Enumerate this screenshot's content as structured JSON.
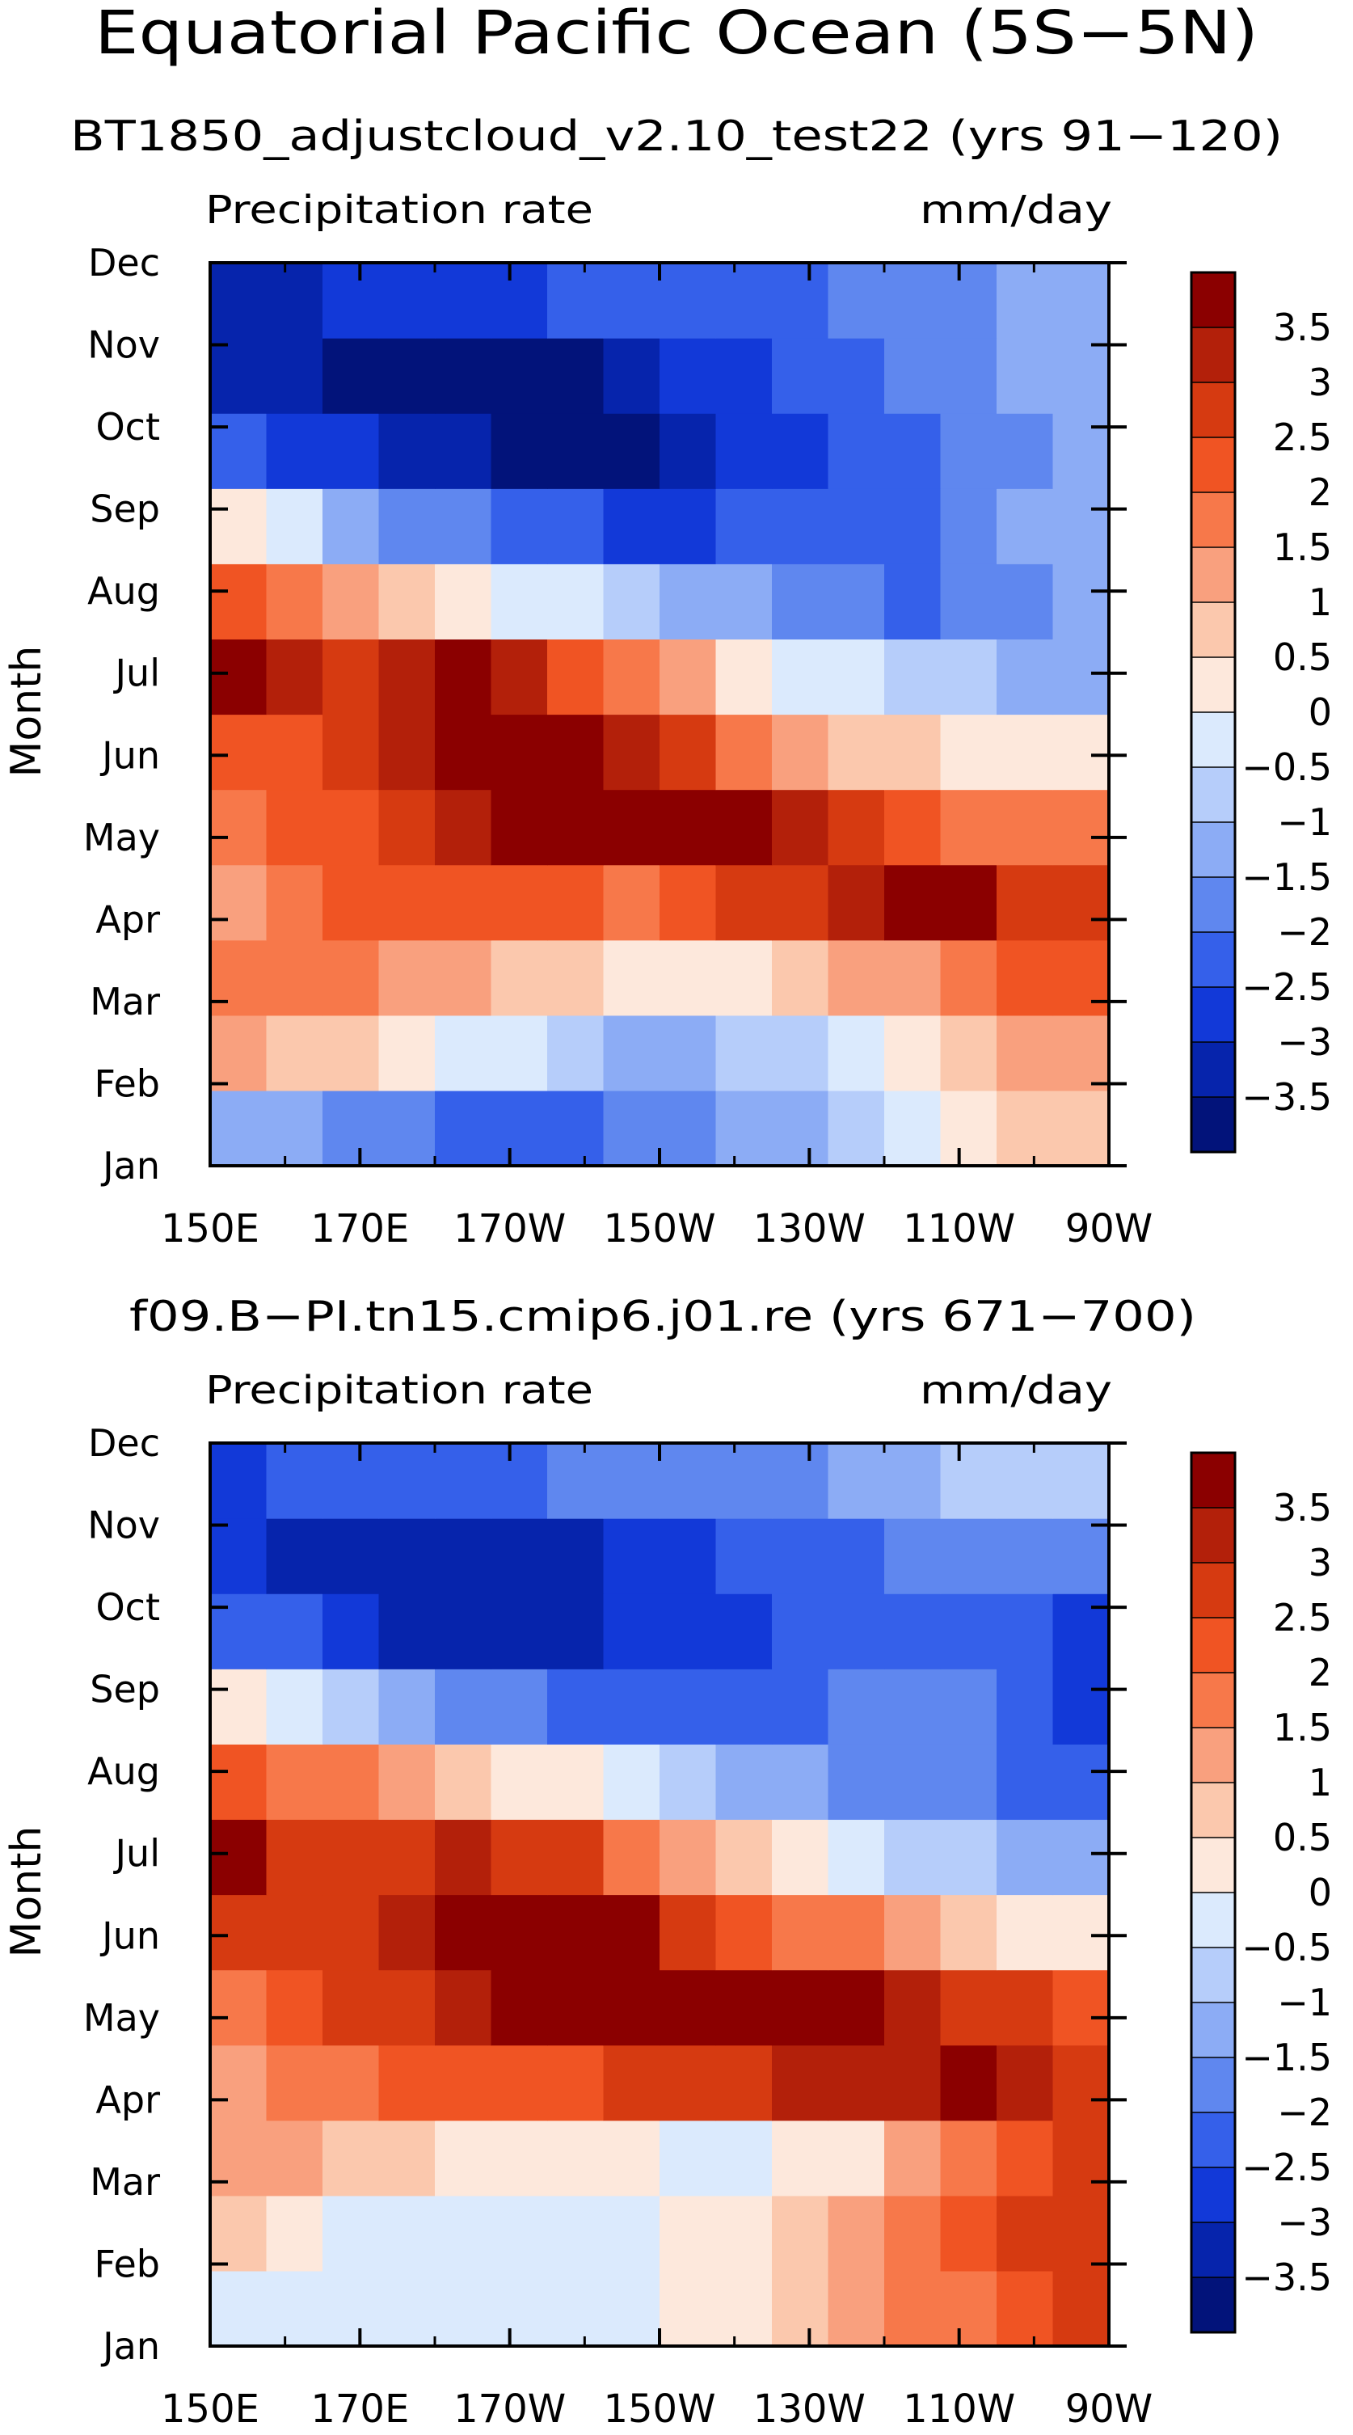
{
  "page": {
    "title": "Equatorial Pacific Ocean (5S−5N)"
  },
  "chart_data": [
    {
      "type": "heatmap",
      "subtitle": "BT1850_adjustcloud_v2.10_test22 (yrs 91−120)",
      "left_label": "Precipitation rate",
      "right_label": "mm/day",
      "ylabel": "Month",
      "xlabel": "",
      "x_ticks": [
        "150E",
        "170E",
        "170W",
        "150W",
        "130W",
        "110W",
        "90W"
      ],
      "y_ticks": [
        "Jan",
        "Feb",
        "Mar",
        "Apr",
        "May",
        "Jun",
        "Jul",
        "Aug",
        "Sep",
        "Oct",
        "Nov",
        "Dec"
      ],
      "colorbar_ticks": [
        "3.5",
        "3",
        "2.5",
        "2",
        "1.5",
        "1",
        "0.5",
        "0",
        "−0.5",
        "−1",
        "−1.5",
        "−2",
        "−2.5",
        "−3",
        "−3.5"
      ],
      "colorbar_colors": [
        "#8b0000",
        "#b3200a",
        "#d63a11",
        "#f05423",
        "#f7784a",
        "#f9a07e",
        "#fbc8ad",
        "#fde8dc",
        "#dbeafd",
        "#b6cdfa",
        "#8cacf5",
        "#5f87ef",
        "#3560ea",
        "#1239d8",
        "#0624ac",
        "#02137a"
      ],
      "grid": [
        [
          -1.2,
          -1.4,
          -1.6,
          -1.8,
          -2.0,
          -2.2,
          -2.1,
          -1.9,
          -1.6,
          -1.3,
          -1.0,
          -0.6,
          -0.3,
          0.2,
          0.6,
          0.9
        ],
        [
          1.2,
          0.9,
          0.6,
          0.3,
          0.0,
          -0.4,
          -0.8,
          -1.0,
          -1.0,
          -0.8,
          -0.5,
          -0.1,
          0.3,
          0.7,
          1.1,
          1.4
        ],
        [
          1.8,
          1.9,
          2.0,
          1.5,
          1.2,
          0.9,
          0.6,
          0.4,
          0.3,
          0.5,
          0.8,
          1.1,
          1.5,
          1.9,
          2.2,
          2.4
        ],
        [
          1.4,
          1.9,
          2.2,
          2.3,
          2.3,
          2.2,
          2.1,
          2.0,
          2.3,
          2.6,
          2.9,
          3.2,
          3.5,
          3.7,
          2.9,
          2.6
        ],
        [
          1.6,
          2.1,
          2.5,
          3.0,
          3.4,
          3.6,
          3.8,
          3.9,
          3.9,
          3.7,
          3.3,
          2.8,
          2.3,
          1.9,
          1.8,
          1.6
        ],
        [
          2.5,
          2.4,
          2.6,
          3.2,
          3.8,
          3.9,
          3.7,
          3.2,
          2.6,
          2.0,
          1.5,
          1.0,
          0.6,
          0.2,
          0.1,
          0.3
        ],
        [
          3.6,
          3.1,
          2.9,
          3.4,
          3.6,
          3.1,
          2.5,
          1.8,
          1.1,
          0.5,
          0.0,
          -0.4,
          -0.7,
          -0.9,
          -1.0,
          -1.1
        ],
        [
          2.4,
          2.0,
          1.5,
          1.0,
          0.5,
          0.0,
          -0.4,
          -0.8,
          -1.1,
          -1.4,
          -1.7,
          -1.9,
          -2.0,
          -1.8,
          -1.6,
          -1.4
        ],
        [
          0.3,
          -0.4,
          -1.0,
          -1.5,
          -1.9,
          -2.2,
          -2.4,
          -2.5,
          -2.5,
          -2.4,
          -2.3,
          -2.2,
          -2.0,
          -1.7,
          -1.4,
          -1.2
        ],
        [
          -2.0,
          -2.5,
          -2.9,
          -3.2,
          -3.4,
          -3.6,
          -3.6,
          -3.5,
          -3.2,
          -2.9,
          -2.6,
          -2.3,
          -2.0,
          -1.7,
          -1.5,
          -1.3
        ],
        [
          -3.0,
          -3.3,
          -3.6,
          -3.8,
          -3.8,
          -3.7,
          -3.5,
          -3.2,
          -2.9,
          -2.6,
          -2.3,
          -2.0,
          -1.8,
          -1.6,
          -1.4,
          -1.2
        ],
        [
          -3.2,
          -3.1,
          -2.9,
          -2.7,
          -2.6,
          -2.5,
          -2.4,
          -2.3,
          -2.2,
          -2.1,
          -2.0,
          -1.9,
          -1.7,
          -1.5,
          -1.3,
          -1.1
        ]
      ]
    },
    {
      "type": "heatmap",
      "subtitle": "f09.B−PI.tn15.cmip6.j01.re (yrs 671−700)",
      "left_label": "Precipitation rate",
      "right_label": "mm/day",
      "ylabel": "Month",
      "xlabel": "",
      "x_ticks": [
        "150E",
        "170E",
        "170W",
        "150W",
        "130W",
        "110W",
        "90W"
      ],
      "y_ticks": [
        "Jan",
        "Feb",
        "Mar",
        "Apr",
        "May",
        "Jun",
        "Jul",
        "Aug",
        "Sep",
        "Oct",
        "Nov",
        "Dec"
      ],
      "colorbar_ticks": [
        "3.5",
        "3",
        "2.5",
        "2",
        "1.5",
        "1",
        "0.5",
        "0",
        "−0.5",
        "−1",
        "−1.5",
        "−2",
        "−2.5",
        "−3",
        "−3.5"
      ],
      "colorbar_colors": [
        "#8b0000",
        "#b3200a",
        "#d63a11",
        "#f05423",
        "#f7784a",
        "#f9a07e",
        "#fbc8ad",
        "#fde8dc",
        "#dbeafd",
        "#b6cdfa",
        "#8cacf5",
        "#5f87ef",
        "#3560ea",
        "#1239d8",
        "#0624ac",
        "#02137a"
      ],
      "grid": [
        [
          -0.3,
          -0.4,
          -0.4,
          -0.3,
          -0.2,
          -0.2,
          -0.1,
          0.0,
          0.2,
          0.4,
          0.7,
          1.1,
          1.6,
          2.0,
          2.4,
          2.7
        ],
        [
          0.7,
          0.4,
          -0.1,
          -0.3,
          -0.2,
          -0.3,
          -0.3,
          -0.1,
          0.2,
          0.5,
          0.9,
          1.3,
          1.8,
          2.2,
          2.6,
          2.9
        ],
        [
          1.4,
          1.2,
          1.0,
          0.6,
          0.4,
          0.3,
          0.2,
          0.1,
          -0.1,
          0.0,
          0.2,
          0.5,
          1.2,
          1.8,
          2.4,
          2.8
        ],
        [
          1.3,
          1.6,
          1.9,
          2.1,
          2.3,
          2.4,
          2.5,
          2.6,
          2.8,
          3.0,
          3.1,
          3.2,
          3.3,
          3.5,
          3.3,
          2.9
        ],
        [
          1.8,
          2.2,
          2.6,
          2.9,
          3.2,
          3.5,
          3.7,
          3.8,
          3.9,
          3.9,
          3.8,
          3.6,
          3.3,
          3.0,
          2.7,
          2.5
        ],
        [
          2.6,
          2.7,
          2.8,
          3.1,
          3.6,
          3.9,
          3.8,
          3.5,
          3.0,
          2.5,
          2.0,
          1.6,
          1.2,
          0.8,
          0.5,
          0.3
        ],
        [
          3.5,
          3.0,
          2.7,
          2.9,
          3.2,
          3.0,
          2.6,
          2.0,
          1.4,
          0.8,
          0.3,
          -0.1,
          -0.5,
          -0.8,
          -1.0,
          -1.2
        ],
        [
          2.2,
          1.9,
          1.6,
          1.3,
          0.9,
          0.5,
          0.1,
          -0.3,
          -0.7,
          -1.0,
          -1.3,
          -1.5,
          -1.7,
          -1.9,
          -2.1,
          -2.4
        ],
        [
          0.4,
          -0.2,
          -0.7,
          -1.2,
          -1.6,
          -1.9,
          -2.1,
          -2.3,
          -2.4,
          -2.3,
          -2.1,
          -1.9,
          -1.8,
          -1.8,
          -2.1,
          -2.6
        ],
        [
          -2.1,
          -2.4,
          -2.7,
          -3.0,
          -3.1,
          -3.2,
          -3.1,
          -2.9,
          -2.6,
          -2.5,
          -2.4,
          -2.4,
          -2.3,
          -2.2,
          -2.3,
          -2.6
        ],
        [
          -2.6,
          -3.0,
          -3.2,
          -3.2,
          -3.1,
          -3.1,
          -3.0,
          -2.8,
          -2.6,
          -2.4,
          -2.2,
          -2.0,
          -1.8,
          -1.6,
          -1.6,
          -1.9
        ],
        [
          -2.5,
          -2.4,
          -2.3,
          -2.2,
          -2.1,
          -2.0,
          -1.9,
          -1.8,
          -1.7,
          -1.6,
          -1.5,
          -1.3,
          -1.1,
          -0.9,
          -0.7,
          -0.6
        ]
      ]
    }
  ]
}
